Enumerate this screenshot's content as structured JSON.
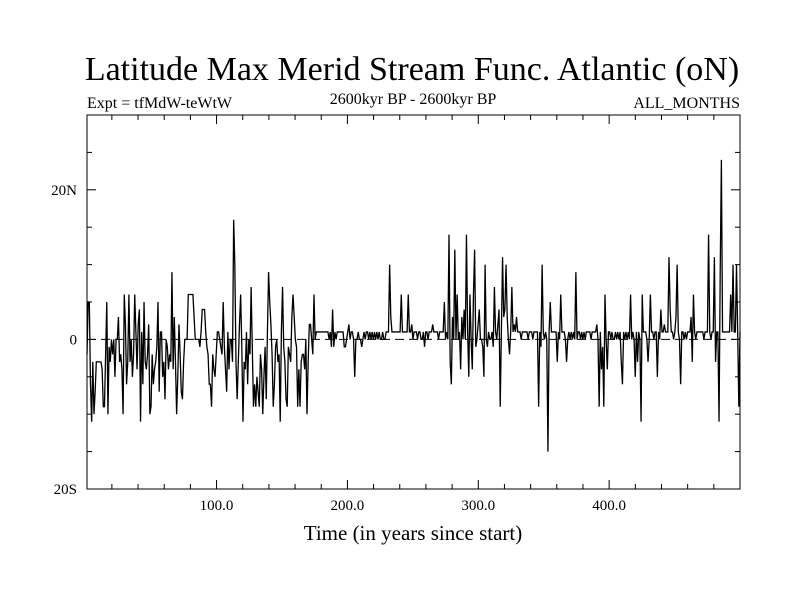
{
  "chart_data": {
    "type": "line",
    "title": "Latitude Max Merid Stream Func. Atlantic (oN)",
    "subtitle_left": "Expt = tfMdW-teWtW",
    "subtitle_center": "2600kyr BP - 2600kyr BP",
    "subtitle_right": "ALL_MONTHS",
    "xlabel": "Time (in years since start)",
    "ylabel": "",
    "xlim": [
      1,
      500
    ],
    "ylim": [
      -20,
      30
    ],
    "x_ticks": [
      100,
      200,
      300,
      400
    ],
    "x_tick_labels": [
      "100.0",
      "200.0",
      "300.0",
      "400.0"
    ],
    "y_ticks": [
      -20,
      0,
      20
    ],
    "y_tick_labels": [
      "20S",
      "0",
      "20N"
    ],
    "reference_line": 0,
    "series": [
      {
        "values": [
          -2,
          5,
          5,
          -6,
          -11,
          -3,
          -10,
          -7,
          -3,
          -3,
          -3,
          -3,
          -3,
          -4,
          -9,
          -9,
          -2,
          5,
          -10,
          -1,
          -3,
          0,
          -2,
          0,
          -5,
          0,
          0,
          3,
          -3,
          -2,
          -4,
          -10,
          6,
          2,
          -6,
          -3,
          6,
          -3,
          0,
          -5,
          -2,
          6,
          1,
          -4,
          2,
          4,
          -11,
          1,
          -6,
          5,
          -3,
          -4,
          -2,
          2,
          -10,
          -9,
          -2,
          -6,
          -4,
          -3,
          -1,
          5,
          -7,
          1,
          1,
          -5,
          -3,
          -8,
          0,
          -1,
          -4,
          -2,
          -3,
          9,
          -4,
          3,
          -3,
          -10,
          -5,
          2,
          -2,
          -7,
          -8,
          -3,
          0,
          0,
          0,
          6,
          6,
          6,
          6,
          6,
          3,
          0,
          0,
          0,
          0,
          -1,
          1,
          4,
          4,
          4,
          1,
          -1,
          -2,
          -6,
          -6,
          -9,
          -2,
          -4,
          -5,
          -2,
          1,
          1,
          0,
          -1,
          -2,
          5,
          -1,
          -4,
          -7,
          1,
          -4,
          0,
          0,
          -3,
          16,
          10,
          -3,
          -8,
          -3,
          2,
          6,
          -1,
          -11,
          -3,
          -4,
          1,
          -6,
          0,
          -2,
          7,
          -1,
          -9,
          -6,
          -9,
          -5,
          -7,
          -9,
          -2,
          -4,
          -10,
          -5,
          -1,
          -8,
          1,
          9,
          5,
          2,
          -2,
          -9,
          -6,
          -1,
          0,
          -3,
          -2,
          -11,
          1,
          7,
          -1,
          -3,
          -8,
          -9,
          -1,
          -2,
          -3,
          3,
          6,
          3,
          0,
          -1,
          -9,
          -4,
          -9,
          -3,
          -2,
          -2,
          -4,
          0,
          -10,
          -3,
          2,
          2,
          0,
          -2,
          6,
          0,
          1,
          1,
          1,
          1,
          1,
          1,
          1,
          1,
          1,
          1,
          1,
          0,
          1,
          -1,
          4,
          -1,
          1,
          0,
          1,
          1,
          1,
          1,
          1,
          1,
          -1,
          -1,
          0,
          1,
          2,
          0,
          1,
          1,
          0,
          -5,
          0,
          0,
          1,
          0,
          0,
          -1,
          0,
          1,
          0,
          1,
          1,
          0,
          1,
          0,
          1,
          0,
          1,
          0,
          1,
          0,
          1,
          0,
          0,
          1,
          0,
          0,
          1,
          1,
          1,
          10,
          3,
          1,
          1,
          1,
          1,
          1,
          1,
          1,
          1,
          6,
          1,
          1,
          1,
          1,
          1,
          6,
          1,
          1,
          2,
          0,
          1,
          1,
          1,
          0,
          1,
          1,
          0,
          0,
          1,
          -1,
          1,
          1,
          0,
          1,
          1,
          1,
          2,
          1,
          1,
          1,
          1,
          0,
          1,
          1,
          1,
          1,
          5,
          0,
          1,
          0,
          14,
          -3,
          -6,
          3,
          0,
          12,
          0,
          6,
          0,
          1,
          -4,
          3,
          0,
          4,
          0,
          14,
          1,
          -5,
          6,
          0,
          -4,
          6,
          12,
          -1,
          0,
          2,
          4,
          0,
          0,
          -1,
          -5,
          10,
          0,
          -1,
          1,
          0,
          0,
          1,
          -1,
          7,
          1,
          0,
          2,
          4,
          -9,
          1,
          11,
          3,
          4,
          10,
          3,
          0,
          -2,
          1,
          7,
          1,
          2,
          1,
          3,
          1,
          1,
          1,
          0,
          1,
          1,
          1,
          1,
          1,
          0,
          1,
          1,
          1,
          0,
          1,
          1,
          1,
          1,
          -9,
          1,
          -1,
          10,
          1,
          0,
          1,
          0,
          -15,
          1,
          5,
          1,
          1,
          1,
          1,
          1,
          -3,
          1,
          0,
          6,
          1,
          1,
          1,
          0,
          -3,
          0,
          1,
          0,
          1,
          0,
          1,
          0,
          9,
          0,
          1,
          1,
          0,
          1,
          0,
          1,
          0,
          1,
          1,
          1,
          1,
          0,
          1,
          1,
          1,
          1,
          2,
          0,
          -9,
          1,
          -4,
          -1,
          -9,
          6,
          0,
          -4,
          1,
          1,
          0,
          1,
          0,
          0,
          1,
          0,
          1,
          0,
          1,
          -3,
          -6,
          1,
          0,
          1,
          0,
          1,
          0,
          6,
          0,
          1,
          0,
          -5,
          1,
          -3,
          1,
          0,
          -11,
          6,
          1,
          1,
          1,
          0,
          -3,
          0,
          6,
          1,
          1,
          0,
          1,
          1,
          -5,
          1,
          0,
          4,
          1,
          1,
          2,
          1,
          1,
          1,
          11,
          4,
          1,
          1,
          0,
          1,
          3,
          10,
          1,
          0,
          -6,
          1,
          1,
          0,
          1,
          0,
          1,
          1,
          1,
          3,
          -3,
          6,
          1,
          0,
          1,
          1,
          1,
          1,
          1,
          1,
          0,
          1,
          1,
          1,
          14,
          1,
          0,
          1,
          1,
          11,
          -3,
          1,
          1,
          -11,
          9,
          24,
          1,
          1,
          1,
          1,
          1,
          1,
          1,
          6,
          1,
          10,
          1,
          1,
          10,
          1,
          -9,
          1
        ]
      }
    ]
  }
}
